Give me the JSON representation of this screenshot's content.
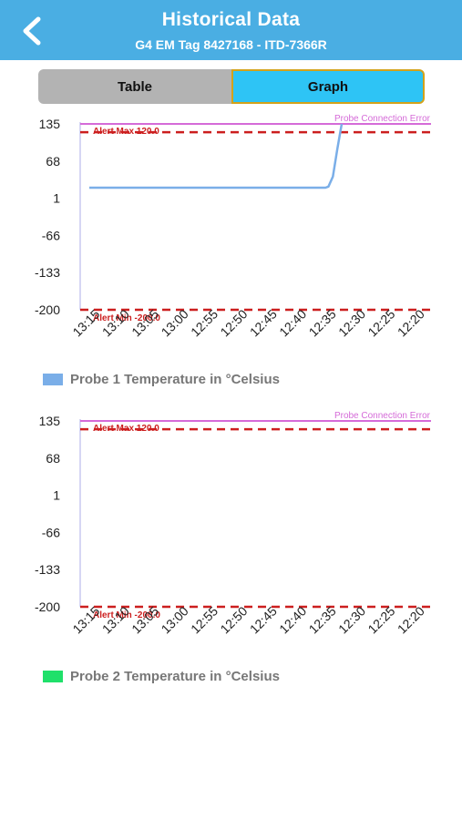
{
  "header": {
    "title": "Historical Data",
    "subtitle": "G4 EM Tag 8427168 - ITD-7366R",
    "back_icon": "chevron-left-icon"
  },
  "tabs": {
    "table_label": "Table",
    "graph_label": "Graph",
    "selected": "Graph"
  },
  "colors": {
    "header": "#4aaee3",
    "alert": "#cc1f1f",
    "probe_error": "#d56bd8",
    "probe1": "#7aaee8",
    "probe2": "#1fe06a"
  },
  "chart_data": [
    {
      "type": "line",
      "x": [
        "13:15",
        "13:10",
        "13:05",
        "13:00",
        "12:55",
        "12:50",
        "12:45",
        "12:40",
        "12:35",
        "12:30",
        "12:25",
        "12:20"
      ],
      "y_ticks": [
        "135",
        "68",
        "1",
        "-66",
        "-133",
        "-200"
      ],
      "ylim": [
        -200,
        135
      ],
      "alert_max_label": "Alert Max 120.0",
      "alert_max": 120,
      "alert_min_label": "Alert Min -200.0",
      "alert_min": -200,
      "probe_error_label": "Probe Connection Error",
      "probe_error_value": 135,
      "legend": "Probe 1 Temperature in °Celsius",
      "series": [
        {
          "values": [
            [
              0,
              20
            ],
            [
              1,
              20
            ],
            [
              2,
              20
            ],
            [
              3,
              20
            ],
            [
              4,
              20
            ],
            [
              5,
              20
            ],
            [
              6,
              20
            ],
            [
              7,
              20
            ],
            [
              8,
              20
            ],
            [
              8.1,
              22
            ],
            [
              8.25,
              40
            ],
            [
              8.4,
              90
            ],
            [
              8.55,
              135
            ]
          ]
        }
      ]
    },
    {
      "type": "line",
      "x": [
        "13:15",
        "13:10",
        "13:05",
        "13:00",
        "12:55",
        "12:50",
        "12:45",
        "12:40",
        "12:35",
        "12:30",
        "12:25",
        "12:20"
      ],
      "y_ticks": [
        "135",
        "68",
        "1",
        "-66",
        "-133",
        "-200"
      ],
      "ylim": [
        -200,
        135
      ],
      "alert_max_label": "Alert Max 120.0",
      "alert_max": 120,
      "alert_min_label": "Alert Min -200.0",
      "alert_min": -200,
      "probe_error_label": "Probe Connection Error",
      "probe_error_value": 135,
      "legend": "Probe 2 Temperature in °Celsius",
      "series": []
    }
  ]
}
